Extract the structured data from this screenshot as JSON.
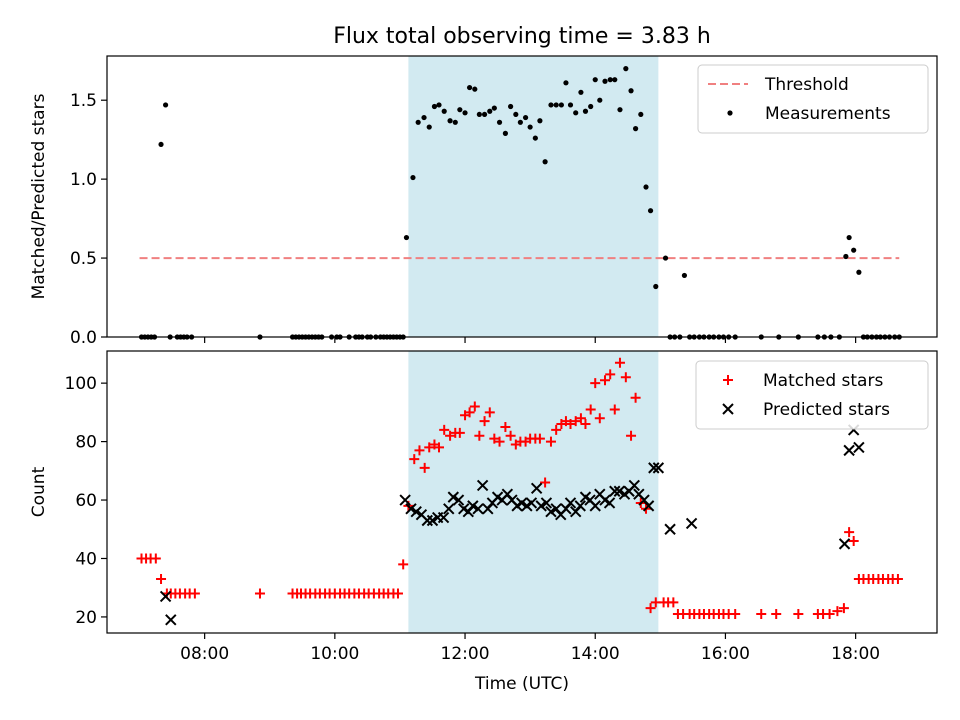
{
  "figure": {
    "title": "Flux total observing time = 3.83 h",
    "shade_color": "#add8e6"
  },
  "chart_data": [
    {
      "type": "scatter",
      "panel": "top",
      "ylabel": "Matched/Predicted stars",
      "xlabel": "",
      "xlim": [
        6.5,
        19.25
      ],
      "ylim": [
        0,
        1.78
      ],
      "yticks": [
        0.0,
        0.5,
        1.0,
        1.5
      ],
      "ytick_labels": [
        "0.0",
        "0.5",
        "1.0",
        "1.5"
      ],
      "xticks": [
        8,
        10,
        12,
        14,
        16,
        18
      ],
      "grid": false,
      "legend": "top-right",
      "shaded_region": [
        11.13,
        14.97
      ],
      "threshold": {
        "name": "Threshold",
        "value": 0.5,
        "x": [
          7.0,
          18.67
        ],
        "color": "#f08080"
      },
      "series": [
        {
          "name": "Measurements",
          "color": "#000000",
          "marker": "dot",
          "x": [
            7.03,
            7.08,
            7.13,
            7.18,
            7.23,
            7.33,
            7.4,
            7.47,
            7.58,
            7.63,
            7.68,
            7.73,
            7.8,
            8.85,
            9.35,
            9.4,
            9.45,
            9.5,
            9.55,
            9.6,
            9.65,
            9.7,
            9.75,
            9.8,
            9.95,
            10.03,
            10.08,
            10.22,
            10.32,
            10.37,
            10.42,
            10.5,
            10.55,
            10.63,
            10.7,
            10.75,
            10.8,
            10.85,
            10.9,
            10.95,
            11.0,
            11.05,
            11.1,
            11.2,
            11.28,
            11.37,
            11.45,
            11.53,
            11.6,
            11.68,
            11.77,
            11.85,
            11.92,
            12.0,
            12.07,
            12.15,
            12.22,
            12.3,
            12.38,
            12.45,
            12.53,
            12.62,
            12.7,
            12.78,
            12.85,
            12.93,
            13.0,
            13.08,
            13.15,
            13.23,
            13.32,
            13.4,
            13.48,
            13.55,
            13.62,
            13.7,
            13.78,
            13.85,
            13.93,
            14.0,
            14.07,
            14.15,
            14.23,
            14.3,
            14.38,
            14.47,
            14.55,
            14.62,
            14.7,
            14.78,
            14.85,
            14.93,
            15.08,
            15.15,
            15.22,
            15.3,
            15.37,
            15.45,
            15.52,
            15.6,
            15.67,
            15.75,
            15.82,
            15.9,
            15.97,
            16.05,
            16.15,
            16.55,
            16.82,
            17.12,
            17.42,
            17.52,
            17.62,
            17.75,
            17.85,
            17.9,
            17.97,
            18.05,
            18.12,
            18.18,
            18.25,
            18.32,
            18.38,
            18.45,
            18.52,
            18.6,
            18.67
          ],
          "y": [
            0.0,
            0.0,
            0.0,
            0.0,
            0.0,
            1.22,
            1.47,
            0.0,
            0.0,
            0.0,
            0.0,
            0.0,
            0.0,
            0.0,
            0.0,
            0.0,
            0.0,
            0.0,
            0.0,
            0.0,
            0.0,
            0.0,
            0.0,
            0.0,
            0.0,
            0.0,
            0.0,
            0.0,
            0.0,
            0.0,
            0.0,
            0.0,
            0.0,
            0.0,
            0.0,
            0.0,
            0.0,
            0.0,
            0.0,
            0.0,
            0.0,
            0.0,
            0.63,
            1.01,
            1.36,
            1.39,
            1.33,
            1.46,
            1.47,
            1.43,
            1.37,
            1.36,
            1.44,
            1.42,
            1.58,
            1.57,
            1.41,
            1.41,
            1.43,
            1.45,
            1.36,
            1.29,
            1.46,
            1.41,
            1.36,
            1.39,
            1.33,
            1.26,
            1.37,
            1.11,
            1.47,
            1.47,
            1.47,
            1.61,
            1.47,
            1.42,
            1.55,
            1.43,
            1.46,
            1.63,
            1.5,
            1.62,
            1.63,
            1.63,
            1.44,
            1.7,
            1.56,
            1.32,
            1.41,
            0.95,
            0.8,
            0.32,
            0.5,
            0.0,
            0.0,
            0.0,
            0.39,
            0.0,
            0.0,
            0.0,
            0.0,
            0.0,
            0.0,
            0.0,
            0.0,
            0.0,
            0.0,
            0.0,
            0.0,
            0.0,
            0.0,
            0.0,
            0.0,
            0.0,
            0.51,
            0.63,
            0.55,
            0.41,
            0.0,
            0.0,
            0.0,
            0.0,
            0.0,
            0.0,
            0.0,
            0.0,
            0.0
          ]
        }
      ]
    },
    {
      "type": "scatter",
      "panel": "bottom",
      "ylabel": "Count",
      "xlabel": "Time (UTC)",
      "xlim": [
        6.5,
        19.25
      ],
      "ylim": [
        14.5,
        111
      ],
      "yticks": [
        20,
        40,
        60,
        80,
        100
      ],
      "ytick_labels": [
        "20",
        "40",
        "60",
        "80",
        "100"
      ],
      "xticks": [
        8,
        10,
        12,
        14,
        16,
        18
      ],
      "xtick_labels": [
        "08:00",
        "10:00",
        "12:00",
        "14:00",
        "16:00",
        "18:00"
      ],
      "grid": false,
      "legend": "top-right",
      "shaded_region": [
        11.13,
        14.97
      ],
      "series": [
        {
          "name": "Matched stars",
          "color": "#ff0000",
          "marker": "plus",
          "x": [
            7.03,
            7.1,
            7.17,
            7.25,
            7.33,
            7.42,
            7.48,
            7.55,
            7.62,
            7.7,
            7.77,
            7.85,
            8.85,
            9.35,
            9.42,
            9.48,
            9.55,
            9.62,
            9.7,
            9.77,
            9.85,
            9.92,
            10.0,
            10.08,
            10.15,
            10.22,
            10.3,
            10.37,
            10.45,
            10.52,
            10.6,
            10.68,
            10.75,
            10.82,
            10.9,
            10.97,
            11.05,
            11.13,
            11.22,
            11.3,
            11.38,
            11.45,
            11.53,
            11.6,
            11.68,
            11.77,
            11.85,
            11.92,
            12.0,
            12.07,
            12.15,
            12.22,
            12.3,
            12.38,
            12.45,
            12.53,
            12.62,
            12.7,
            12.78,
            12.85,
            12.93,
            13.0,
            13.08,
            13.15,
            13.23,
            13.32,
            13.4,
            13.48,
            13.55,
            13.62,
            13.7,
            13.78,
            13.85,
            13.93,
            14.0,
            14.07,
            14.15,
            14.23,
            14.3,
            14.38,
            14.47,
            14.55,
            14.62,
            14.7,
            14.78,
            14.85,
            14.93,
            15.05,
            15.12,
            15.2,
            15.27,
            15.35,
            15.45,
            15.52,
            15.6,
            15.67,
            15.75,
            15.82,
            15.9,
            15.97,
            16.05,
            16.15,
            16.55,
            16.78,
            17.12,
            17.42,
            17.5,
            17.6,
            17.72,
            17.82,
            17.9,
            17.97,
            18.05,
            18.12,
            18.2,
            18.27,
            18.35,
            18.42,
            18.5,
            18.57,
            18.65
          ],
          "y": [
            40,
            40,
            40,
            40,
            33,
            28,
            28,
            28,
            28,
            28,
            28,
            28,
            28,
            28,
            28,
            28,
            28,
            28,
            28,
            28,
            28,
            28,
            28,
            28,
            28,
            28,
            28,
            28,
            28,
            28,
            28,
            28,
            28,
            28,
            28,
            28,
            38,
            58,
            74,
            77,
            71,
            78,
            79,
            78,
            84,
            82,
            83,
            83,
            89,
            90,
            92,
            82,
            87,
            90,
            81,
            80,
            85,
            82,
            79,
            80,
            80,
            81,
            81,
            81,
            66,
            80,
            84,
            86,
            87,
            86,
            87,
            88,
            86,
            91,
            100,
            88,
            101,
            103,
            91,
            107,
            102,
            82,
            95,
            59,
            57,
            23,
            25,
            25,
            25,
            25,
            21,
            21,
            21,
            21,
            21,
            21,
            21,
            21,
            21,
            21,
            21,
            21,
            21,
            21,
            21,
            21,
            21,
            21,
            22,
            23,
            49,
            46,
            33,
            33,
            33,
            33,
            33,
            33,
            33,
            33,
            33
          ],
          "x_ref": "matched"
        },
        {
          "name": "Predicted stars",
          "color": "#000000",
          "marker": "x",
          "x": [
            7.4,
            7.48,
            11.08,
            11.17,
            11.25,
            11.33,
            11.42,
            11.5,
            11.58,
            11.67,
            11.75,
            11.82,
            11.9,
            11.98,
            12.05,
            12.12,
            12.2,
            12.27,
            12.35,
            12.42,
            12.5,
            12.57,
            12.65,
            12.72,
            12.8,
            12.87,
            12.95,
            13.02,
            13.1,
            13.17,
            13.25,
            13.32,
            13.4,
            13.47,
            13.55,
            13.62,
            13.7,
            13.77,
            13.85,
            13.92,
            14.0,
            14.07,
            14.15,
            14.22,
            14.3,
            14.37,
            14.45,
            14.52,
            14.6,
            14.67,
            14.75,
            14.82,
            14.9,
            14.97,
            15.15,
            15.48,
            17.83,
            17.9,
            17.97,
            18.05
          ],
          "y": [
            27,
            19,
            60,
            57,
            56,
            55,
            53,
            53,
            54,
            54,
            57,
            61,
            60,
            57,
            56,
            58,
            57,
            65,
            57,
            59,
            61,
            60,
            62,
            60,
            58,
            59,
            58,
            59,
            64,
            58,
            59,
            56,
            57,
            55,
            57,
            59,
            56,
            58,
            61,
            60,
            58,
            62,
            60,
            59,
            63,
            63,
            62,
            63,
            65,
            62,
            60,
            58,
            71,
            71,
            50,
            52,
            45,
            77,
            84,
            78
          ]
        }
      ]
    }
  ]
}
